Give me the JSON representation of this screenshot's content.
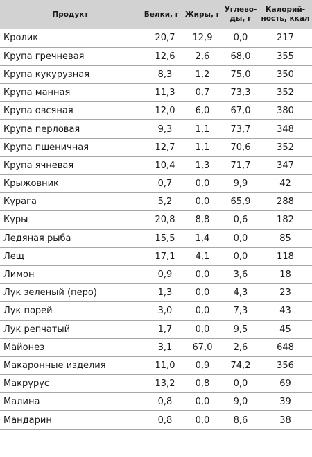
{
  "table": {
    "headers": {
      "product": "Продукт",
      "protein": "Белки, г",
      "fat": "Жиры, г",
      "carbs": "Углево-\nды, г",
      "kcal": "Калорий-\nность, ккал"
    },
    "rows": [
      {
        "name": "Кролик",
        "protein": "20,7",
        "fat": "12,9",
        "carbs": "0,0",
        "kcal": "217"
      },
      {
        "name": "Крупа гречневая",
        "protein": "12,6",
        "fat": "2,6",
        "carbs": "68,0",
        "kcal": "355"
      },
      {
        "name": "Крупа кукурузная",
        "protein": "8,3",
        "fat": "1,2",
        "carbs": "75,0",
        "kcal": "350"
      },
      {
        "name": "Крупа манная",
        "protein": "11,3",
        "fat": "0,7",
        "carbs": "73,3",
        "kcal": "352"
      },
      {
        "name": "Крупа овсяная",
        "protein": "12,0",
        "fat": "6,0",
        "carbs": "67,0",
        "kcal": "380"
      },
      {
        "name": "Крупа перловая",
        "protein": "9,3",
        "fat": "1,1",
        "carbs": "73,7",
        "kcal": "348"
      },
      {
        "name": "Крупа пшеничная",
        "protein": "12,7",
        "fat": "1,1",
        "carbs": "70,6",
        "kcal": "352"
      },
      {
        "name": "Крупа ячневая",
        "protein": "10,4",
        "fat": "1,3",
        "carbs": "71,7",
        "kcal": "347"
      },
      {
        "name": "Крыжовник",
        "protein": "0,7",
        "fat": "0,0",
        "carbs": "9,9",
        "kcal": "42"
      },
      {
        "name": "Курага",
        "protein": "5,2",
        "fat": "0,0",
        "carbs": "65,9",
        "kcal": "288"
      },
      {
        "name": "Куры",
        "protein": "20,8",
        "fat": "8,8",
        "carbs": "0,6",
        "kcal": "182"
      },
      {
        "name": "Ледяная рыба",
        "protein": "15,5",
        "fat": "1,4",
        "carbs": "0,0",
        "kcal": "85"
      },
      {
        "name": "Лещ",
        "protein": "17,1",
        "fat": "4,1",
        "carbs": "0,0",
        "kcal": "118"
      },
      {
        "name": "Лимон",
        "protein": "0,9",
        "fat": "0,0",
        "carbs": "3,6",
        "kcal": "18"
      },
      {
        "name": "Лук зеленый (перо)",
        "protein": "1,3",
        "fat": "0,0",
        "carbs": "4,3",
        "kcal": "23"
      },
      {
        "name": "Лук порей",
        "protein": "3,0",
        "fat": "0,0",
        "carbs": "7,3",
        "kcal": "43"
      },
      {
        "name": "Лук репчатый",
        "protein": "1,7",
        "fat": "0,0",
        "carbs": "9,5",
        "kcal": "45"
      },
      {
        "name": "Майонез",
        "protein": "3,1",
        "fat": "67,0",
        "carbs": "2,6",
        "kcal": "648"
      },
      {
        "name": "Макаронные изделия",
        "protein": "11,0",
        "fat": "0,9",
        "carbs": "74,2",
        "kcal": "356"
      },
      {
        "name": "Макрурус",
        "protein": "13,2",
        "fat": "0,8",
        "carbs": "0,0",
        "kcal": "69"
      },
      {
        "name": "Малина",
        "protein": "0,8",
        "fat": "0,0",
        "carbs": "9,0",
        "kcal": "39"
      },
      {
        "name": "Мандарин",
        "protein": "0,8",
        "fat": "0,0",
        "carbs": "8,6",
        "kcal": "38"
      }
    ]
  }
}
